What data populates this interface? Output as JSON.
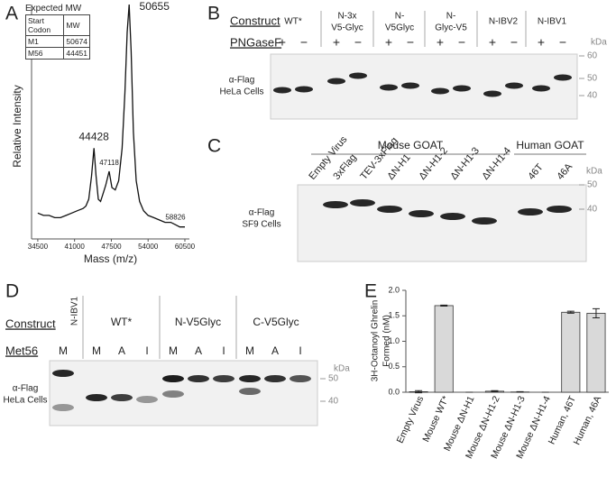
{
  "panel_labels": [
    "A",
    "B",
    "C",
    "D",
    "E"
  ],
  "chart_data": [
    {
      "type": "line",
      "x_label": "Mass (m/z)",
      "y_label": "Relative Intensity",
      "color": "#111111",
      "x": [
        34500,
        35500,
        36500,
        37500,
        38500,
        39500,
        40500,
        41500,
        42500,
        43000,
        43500,
        44000,
        44428,
        44800,
        45200,
        45600,
        46000,
        46500,
        47118,
        47600,
        48200,
        48800,
        49400,
        49900,
        50300,
        50655,
        51000,
        51400,
        51900,
        52500,
        53200,
        54000,
        55000,
        56000,
        57000,
        58000,
        58826,
        59600,
        60500
      ],
      "values": [
        10,
        9,
        9,
        8,
        8,
        9,
        10,
        11,
        12,
        13,
        16,
        26,
        38,
        26,
        16,
        15,
        18,
        22,
        28,
        21,
        20,
        24,
        38,
        62,
        88,
        100,
        80,
        45,
        24,
        15,
        11,
        9,
        8,
        7,
        6,
        6,
        5,
        4,
        4
      ],
      "xlim": [
        33400,
        61300
      ],
      "ylim": [
        0,
        100
      ],
      "xticks": [
        34500,
        41000,
        47500,
        54000,
        60500
      ],
      "peak_labels": [
        50655,
        44428,
        47118,
        58826
      ],
      "inset_table": {
        "title": "Expected MW",
        "header": [
          "Start Codon",
          "MW"
        ],
        "rows": [
          [
            "M1",
            "50674"
          ],
          [
            "M56",
            "44451"
          ]
        ]
      }
    },
    {
      "type": "bar",
      "y_label": [
        "3H-Octanoyl  Ghrelin",
        "Formed (nM)"
      ],
      "color": "#d9d9d9",
      "categories": [
        "Empty Virus",
        "Mouse WT*",
        "Mouse ΔN-H1",
        "Mouse ΔN-H1-2",
        "Mouse ΔN-H1-3",
        "Mouse ΔN-H1-4",
        "Human, 46T",
        "Human, 46A"
      ],
      "values": [
        0.01,
        1.7,
        0,
        0.02,
        0.005,
        0,
        1.57,
        1.55
      ],
      "errors": [
        0.02,
        0.01,
        0,
        0.01,
        0.005,
        0,
        0.02,
        0.09
      ],
      "ylim": [
        0,
        2
      ],
      "yticks": [
        {
          "value": 0,
          "label": "0.0"
        },
        {
          "value": 0.5,
          "label": "0.5"
        },
        {
          "value": 1,
          "label": "1.0"
        },
        {
          "value": 1.5,
          "label": "1.5"
        },
        {
          "value": 2,
          "label": "2.0"
        }
      ]
    }
  ],
  "blot_b": {
    "construct_label": "Construct",
    "treatment_label": "PNGaseF",
    "treatments": [
      "+",
      "−"
    ],
    "constructs": [
      [
        "WT*"
      ],
      [
        "N-3x",
        "V5-Glyc"
      ],
      [
        "N-",
        "V5Glyc"
      ],
      [
        "N-",
        "Glyc-V5"
      ],
      [
        "N-IBV2"
      ],
      [
        "N-IBV1"
      ]
    ],
    "antibody": [
      "α-Flag",
      "HeLa Cells"
    ],
    "kda": "kDa",
    "markers": [
      60,
      50,
      40
    ]
  },
  "blot_c": {
    "groups": [
      "Mouse GOAT",
      "Human GOAT"
    ],
    "lanes": [
      "Empty Virus",
      "3xFlag",
      "TEV-3xFlag",
      "ΔN-H1",
      "ΔN-H1-2",
      "ΔN-H1-3",
      "ΔN-H1-4",
      "46T",
      "46A"
    ],
    "antibody": [
      "α-Flag",
      "SF9 Cells"
    ],
    "kda": "kDa",
    "markers": [
      50,
      40
    ]
  },
  "blot_d": {
    "construct_label": "Construct",
    "met_label": "Met56",
    "groups": [
      {
        "name": "N-IBV1",
        "lanes": [
          "M"
        ]
      },
      {
        "name": "WT*",
        "lanes": [
          "M",
          "A",
          "I"
        ]
      },
      {
        "name": "N-V5Glyc",
        "lanes": [
          "M",
          "A",
          "I"
        ]
      },
      {
        "name": "C-V5Glyc",
        "lanes": [
          "M",
          "A",
          "I"
        ]
      }
    ],
    "antibody": [
      "α-Flag",
      "HeLa Cells"
    ],
    "kda": "kDa",
    "markers": [
      50,
      40
    ]
  }
}
